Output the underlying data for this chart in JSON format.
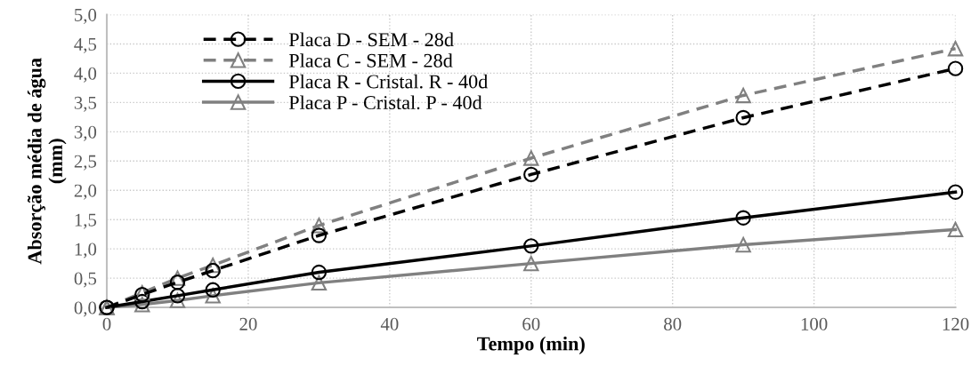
{
  "chart_data": {
    "type": "line",
    "xlabel": "Tempo (min)",
    "ylabel": "Absorção média de água\n(mm)",
    "x": [
      0,
      5,
      10,
      15,
      30,
      60,
      90,
      120
    ],
    "series": [
      {
        "name": "Placa D - SEM - 28d",
        "color": "#000000",
        "marker": "circle",
        "line_style": "dashed",
        "values": [
          0,
          0.22,
          0.43,
          0.63,
          1.23,
          2.27,
          3.24,
          4.08
        ]
      },
      {
        "name": "Placa C - SEM - 28d",
        "color": "#808080",
        "marker": "triangle",
        "line_style": "dashed",
        "values": [
          0,
          0.25,
          0.5,
          0.72,
          1.4,
          2.55,
          3.62,
          4.42
        ]
      },
      {
        "name": "Placa R - Cristal. R - 40d",
        "color": "#000000",
        "marker": "circle",
        "line_style": "solid",
        "values": [
          0,
          0.1,
          0.2,
          0.3,
          0.6,
          1.05,
          1.53,
          1.97
        ]
      },
      {
        "name": "Placa P - Cristal. P - 40d",
        "color": "#808080",
        "marker": "triangle",
        "line_style": "solid",
        "values": [
          0,
          0.05,
          0.12,
          0.2,
          0.42,
          0.75,
          1.07,
          1.33
        ]
      }
    ],
    "xlim": [
      0,
      120
    ],
    "xticks": [
      0,
      20,
      40,
      60,
      80,
      100,
      120
    ],
    "ylim": [
      0,
      5
    ],
    "yticks": [
      {
        "value": 0,
        "label": "0,0"
      },
      {
        "value": 0.5,
        "label": "0,5"
      },
      {
        "value": 1,
        "label": "1,0"
      },
      {
        "value": 1.5,
        "label": "1,5"
      },
      {
        "value": 2,
        "label": "2,0"
      },
      {
        "value": 2.5,
        "label": "2,5"
      },
      {
        "value": 3,
        "label": "3,0"
      },
      {
        "value": 3.5,
        "label": "3,5"
      },
      {
        "value": 4,
        "label": "4,0"
      },
      {
        "value": 4.5,
        "label": "4,5"
      },
      {
        "value": 5,
        "label": "5,0"
      }
    ],
    "grid": true,
    "legend": "top left"
  }
}
